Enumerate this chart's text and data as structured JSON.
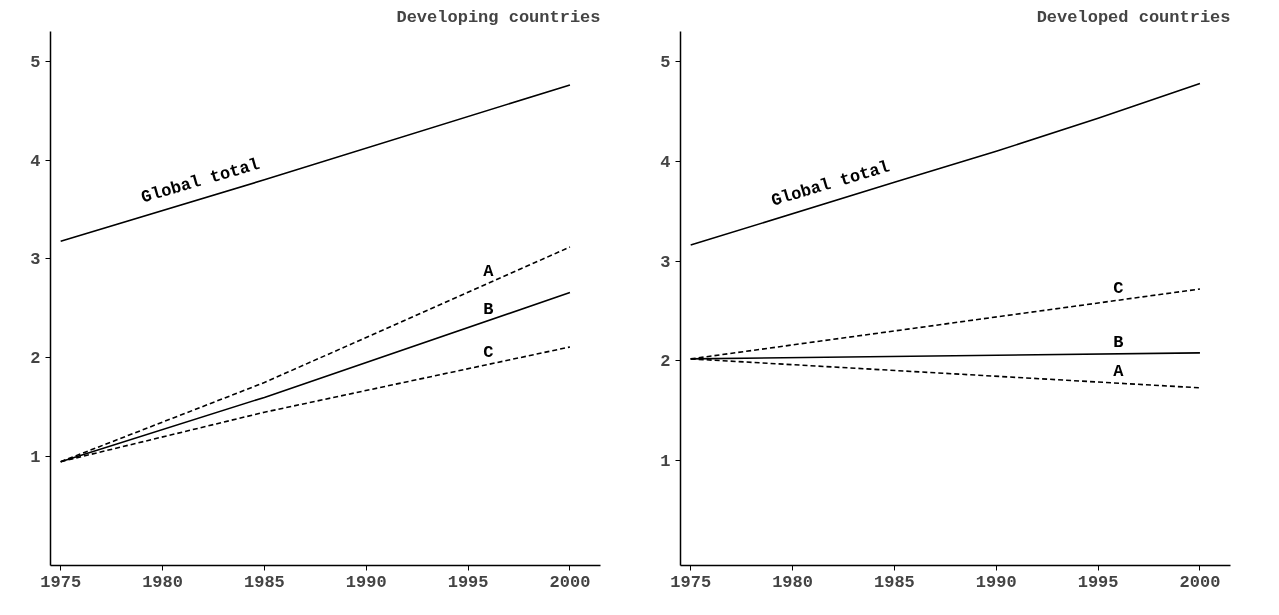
{
  "chart_data": [
    {
      "type": "line",
      "title": "Developing countries",
      "xlim": [
        1974.5,
        2001.5
      ],
      "ylim": [
        -0.1,
        5.3
      ],
      "xticks": [
        1975,
        1980,
        1985,
        1990,
        1995,
        2000
      ],
      "yticks": [
        1,
        2,
        3,
        4,
        5
      ],
      "grid": false,
      "series": [
        {
          "name": "Global total",
          "color": "#000000",
          "line_style": "solid",
          "x": [
            1975,
            1985,
            2000
          ],
          "values": [
            3.18,
            3.8,
            4.76
          ]
        },
        {
          "name": "A",
          "color": "#000000",
          "line_style": "dashed",
          "x": [
            1975,
            1985,
            2000
          ],
          "values": [
            0.95,
            1.75,
            3.12
          ]
        },
        {
          "name": "B",
          "color": "#000000",
          "line_style": "solid",
          "x": [
            1975,
            1985,
            2000
          ],
          "values": [
            0.95,
            1.6,
            2.66
          ]
        },
        {
          "name": "C",
          "color": "#000000",
          "line_style": "dashed",
          "x": [
            1975,
            1985,
            2000
          ],
          "values": [
            0.95,
            1.45,
            2.11
          ]
        }
      ]
    },
    {
      "type": "line",
      "title": "Developed countries",
      "xlim": [
        1974.5,
        2001.5
      ],
      "ylim": [
        -0.05,
        5.3
      ],
      "xticks": [
        1975,
        1980,
        1985,
        1990,
        1995,
        2000
      ],
      "yticks": [
        1,
        2,
        3,
        4,
        5
      ],
      "grid": false,
      "series": [
        {
          "name": "Global total",
          "color": "#000000",
          "line_style": "solid",
          "x": [
            1975,
            1985,
            1990,
            1995,
            2000
          ],
          "values": [
            3.16,
            3.79,
            4.1,
            4.43,
            4.78
          ]
        },
        {
          "name": "C",
          "color": "#000000",
          "line_style": "dashed",
          "x": [
            1975,
            1985,
            2000
          ],
          "values": [
            2.02,
            2.3,
            2.72
          ]
        },
        {
          "name": "B",
          "color": "#000000",
          "line_style": "solid",
          "x": [
            1975,
            2000
          ],
          "values": [
            2.02,
            2.08
          ]
        },
        {
          "name": "A",
          "color": "#000000",
          "line_style": "dashed",
          "x": [
            1975,
            2000
          ],
          "values": [
            2.02,
            1.73
          ]
        }
      ]
    }
  ]
}
